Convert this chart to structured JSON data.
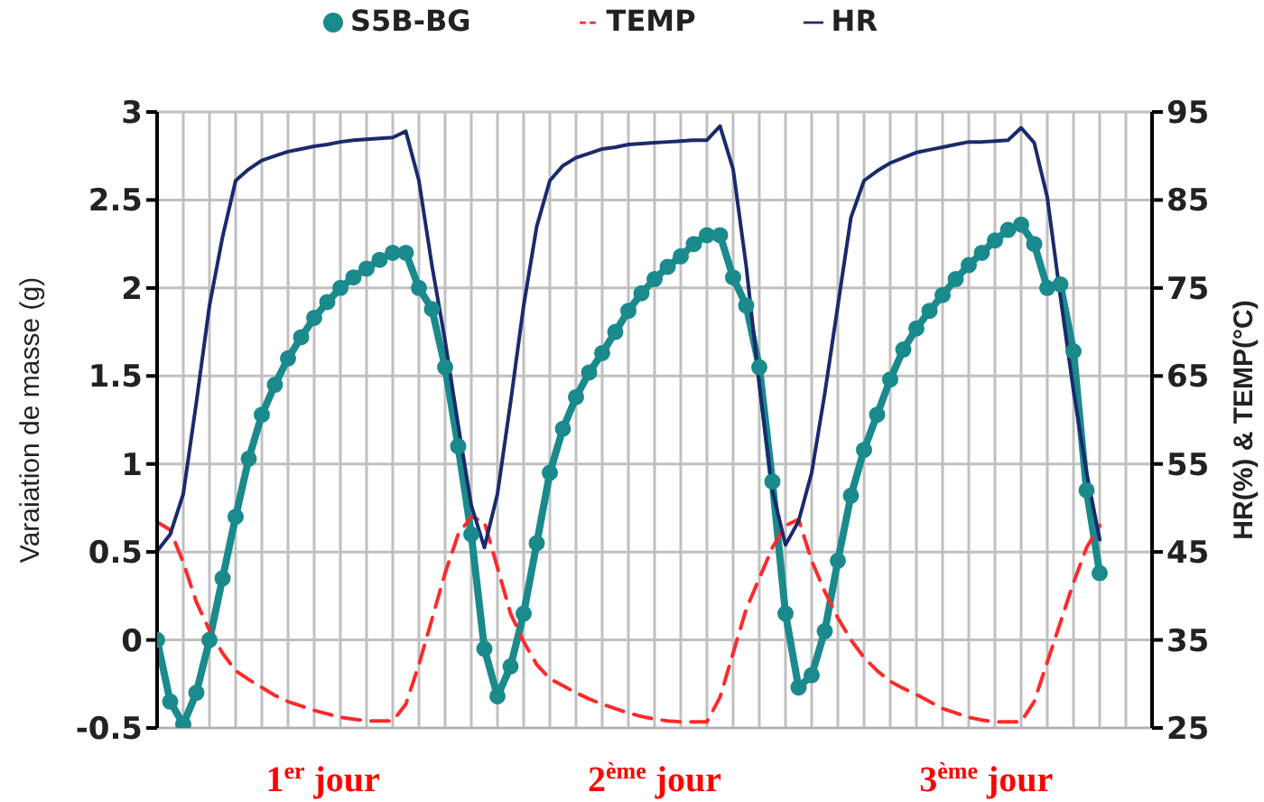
{
  "chart_data": {
    "type": "line",
    "categories": [
      null,
      null,
      null,
      null,
      null,
      null,
      null,
      null,
      null,
      null,
      null,
      null,
      null,
      null,
      null,
      null,
      null,
      null,
      null,
      null,
      null,
      null,
      null,
      null,
      null,
      null,
      null,
      null,
      null,
      null,
      null,
      null,
      null,
      null,
      null,
      null,
      null,
      null,
      null,
      null,
      null,
      null,
      null,
      null,
      null,
      null,
      null,
      null,
      null,
      null,
      null,
      null,
      null,
      null,
      null,
      null,
      null,
      null,
      null,
      null,
      null,
      null,
      null,
      null,
      null,
      null,
      null,
      null,
      null,
      null,
      null,
      null,
      null,
      null,
      null,
      null,
      null
    ],
    "series": [
      {
        "name": "S5B-BG",
        "color": "#1a8a8c",
        "marker": "circle",
        "line_style": "solid",
        "values": [
          0,
          -0.35,
          -0.48,
          -0.3,
          0,
          0.35,
          0.7,
          1.03,
          1.28,
          1.45,
          1.6,
          1.72,
          1.83,
          1.92,
          2,
          2.06,
          2.11,
          2.16,
          2.2,
          2.2,
          2,
          1.88,
          1.55,
          1.1,
          0.6,
          -0.05,
          -0.32,
          -0.15,
          0.15,
          0.55,
          0.95,
          1.2,
          1.38,
          1.52,
          1.63,
          1.75,
          1.87,
          1.97,
          2.05,
          2.12,
          2.18,
          2.25,
          2.3,
          2.3,
          2.06,
          1.9,
          1.55,
          0.9,
          0.15,
          -0.27,
          -0.2,
          0.05,
          0.45,
          0.82,
          1.08,
          1.28,
          1.48,
          1.65,
          1.77,
          1.87,
          1.96,
          2.05,
          2.13,
          2.2,
          2.27,
          2.33,
          2.36,
          2.25,
          2,
          2.02,
          1.64,
          0.85,
          0.38,
          null,
          null,
          null,
          null
        ]
      },
      {
        "name": "TEMP",
        "color": "#ff2a2a",
        "axis": "y2",
        "marker": "none",
        "line_style": "dashed",
        "values": [
          48.4,
          47.5,
          43.8,
          39.3,
          36.1,
          33.5,
          31.5,
          30.5,
          29.6,
          28.7,
          28,
          27.5,
          27,
          26.6,
          26.2,
          26,
          25.8,
          25.8,
          25.8,
          27.7,
          32.2,
          37.4,
          42.6,
          47,
          49,
          48.4,
          43.2,
          38,
          34.8,
          32.2,
          30.6,
          29.8,
          29,
          28.3,
          27.7,
          27.2,
          26.7,
          26.3,
          26,
          25.8,
          25.7,
          25.7,
          25.7,
          28.5,
          33.5,
          38.5,
          42,
          45.5,
          48,
          48.7,
          44,
          40.5,
          37.5,
          35,
          33,
          31.5,
          30.3,
          29.5,
          28.8,
          28,
          27.2,
          26.7,
          26.2,
          25.9,
          25.7,
          25.7,
          25.7,
          28,
          32.5,
          37,
          41.5,
          45.5,
          48,
          null,
          null,
          null,
          null
        ]
      },
      {
        "name": "HR",
        "color": "#1a2a6c",
        "axis": "y2",
        "marker": "none",
        "line_style": "solid",
        "values": [
          45.1,
          47,
          51.6,
          62,
          73,
          80.8,
          87.2,
          88.5,
          89.5,
          90,
          90.5,
          90.8,
          91.1,
          91.3,
          91.6,
          91.8,
          91.9,
          92,
          92.1,
          92.8,
          87.2,
          77.5,
          69,
          59.4,
          50.3,
          45.5,
          51.6,
          62,
          73,
          82,
          87.2,
          88.9,
          89.8,
          90.3,
          90.8,
          91,
          91.3,
          91.4,
          91.5,
          91.6,
          91.7,
          91.8,
          91.8,
          93.4,
          88.5,
          77.5,
          64,
          52,
          45.8,
          48.5,
          54,
          63,
          73,
          83,
          87.2,
          88.3,
          89.2,
          89.8,
          90.4,
          90.7,
          91,
          91.3,
          91.6,
          91.6,
          91.7,
          91.8,
          93.2,
          91.5,
          85.3,
          74,
          63.3,
          54,
          46.4,
          null,
          null,
          null,
          null
        ]
      }
    ],
    "ylabel": "Varaiation de masse (g)",
    "ylim": [
      -0.5,
      3
    ],
    "yticks": [
      -0.5,
      0,
      0.5,
      1,
      1.5,
      2,
      2.5,
      3
    ],
    "y2label": "HR(%) & TEMP(°C)",
    "y2lim": [
      25,
      95
    ],
    "y2ticks": [
      25,
      35,
      45,
      55,
      65,
      75,
      85,
      95
    ],
    "grid": true,
    "legend": "top",
    "annotations": [
      "1$^{er}$ jour",
      "2$^{ème}$ jour",
      "3$^{ème}$ jour"
    ]
  }
}
